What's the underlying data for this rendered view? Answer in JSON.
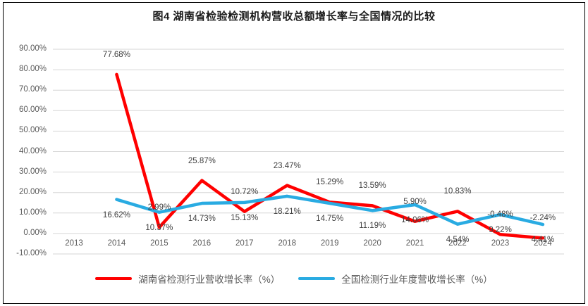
{
  "title": "图4 湖南省检验检测机构营收总额增长率与全国情况的比较",
  "colors": {
    "hunan_series": "#FF0000",
    "national_series": "#29ABE2",
    "gridline": "#D6D6D6",
    "tick_text": "#595959",
    "data_label_text": "#404040",
    "frame_border": "#000000"
  },
  "chart_data": {
    "type": "line",
    "title": "图4 湖南省检验检测机构营收总额增长率与全国情况的比较",
    "categories": [
      "2013",
      "2014",
      "2015",
      "2016",
      "2017",
      "2018",
      "2019",
      "2020",
      "2021",
      "2022",
      "2023",
      "2024"
    ],
    "series": [
      {
        "name": "湖南省检测行业营收增长率（%）",
        "color": "#FF0000",
        "label_position": "above",
        "values": [
          null,
          77.68,
          2.99,
          25.87,
          10.72,
          23.47,
          15.29,
          13.59,
          5.9,
          10.83,
          -0.48,
          -2.24
        ],
        "labels": [
          "",
          "77.68%",
          "2.99%",
          "25.87%",
          "10.72%",
          "23.47%",
          "15.29%",
          "13.59%",
          "5.90%",
          "10.83%",
          "-0.48%",
          "-2.24%"
        ]
      },
      {
        "name": "全国检测行业年度营收增长率（%）",
        "color": "#29ABE2",
        "label_position": "below",
        "values": [
          null,
          16.62,
          10.37,
          14.73,
          15.13,
          18.21,
          14.75,
          11.19,
          14.06,
          4.54,
          9.22,
          4.41
        ],
        "labels": [
          "",
          "16.62%",
          "10.37%",
          "14.73%",
          "15.13%",
          "18.21%",
          "14.75%",
          "11.19%",
          "14.06%",
          "4.54%",
          "9.22%",
          "4.41%"
        ]
      }
    ],
    "ylim": [
      -10,
      90
    ],
    "ytick_step": 10,
    "ytick_labels": [
      "90.00%",
      "80.00%",
      "70.00%",
      "60.00%",
      "50.00%",
      "40.00%",
      "30.00%",
      "20.00%",
      "10.00%",
      "0.00%",
      "-10.00%"
    ],
    "grid": true,
    "legend_position": "bottom"
  }
}
